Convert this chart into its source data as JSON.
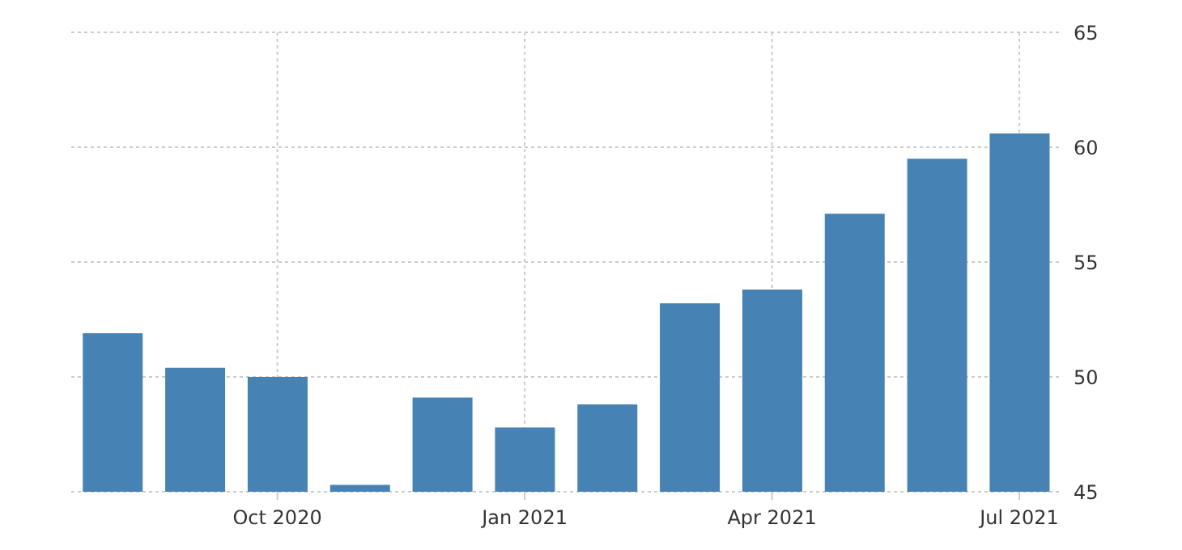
{
  "chart_data": {
    "type": "bar",
    "categories": [
      null,
      null,
      "Oct 2020",
      null,
      null,
      "Jan 2021",
      null,
      null,
      "Apr 2021",
      null,
      null,
      "Jul 2021"
    ],
    "values": [
      51.9,
      50.4,
      50.0,
      45.3,
      49.1,
      47.8,
      48.8,
      53.2,
      53.8,
      57.1,
      59.5,
      60.6
    ],
    "color": "#4682b4",
    "ylim": [
      45,
      65
    ],
    "yticks": [
      45,
      50,
      55,
      60,
      65
    ],
    "grid": true
  }
}
